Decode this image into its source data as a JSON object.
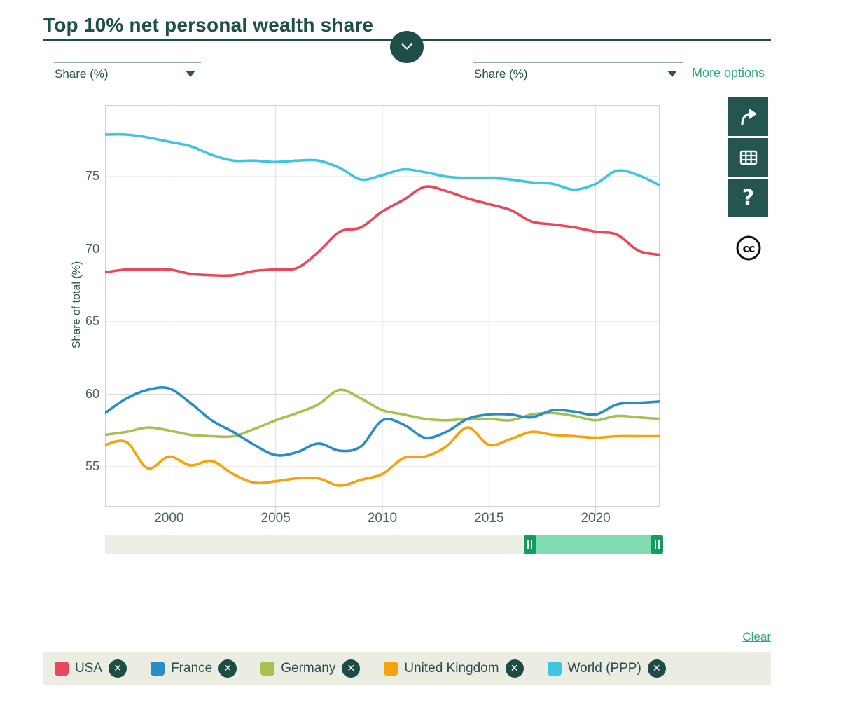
{
  "page": {
    "title": "Top 10% net personal wealth share"
  },
  "controls": {
    "left_select": {
      "value": "Share (%)"
    },
    "right_select": {
      "value": "Share (%)"
    },
    "more_options_label": "More options"
  },
  "toolbar": {
    "help_glyph": "?",
    "cc_glyph": "cc"
  },
  "chart_data": {
    "type": "line",
    "title": "Top 10% net personal wealth share",
    "xlabel": "",
    "ylabel": "Share of total (%)",
    "xlim": [
      1997,
      2023
    ],
    "ylim": [
      52.3,
      79.9
    ],
    "x_ticks": [
      2000,
      2005,
      2010,
      2015,
      2020
    ],
    "y_ticks": [
      55,
      60,
      65,
      70,
      75
    ],
    "grid": true,
    "legend_position": "bottom",
    "x": [
      1997,
      1998,
      1999,
      2000,
      2001,
      2002,
      2003,
      2004,
      2005,
      2006,
      2007,
      2008,
      2009,
      2010,
      2011,
      2012,
      2013,
      2014,
      2015,
      2016,
      2017,
      2018,
      2019,
      2020,
      2021,
      2022,
      2023
    ],
    "series": [
      {
        "name": "USA",
        "color": "#e8485b",
        "values": [
          68.4,
          68.6,
          68.6,
          68.6,
          68.3,
          68.2,
          68.2,
          68.5,
          68.6,
          68.7,
          69.8,
          71.2,
          71.5,
          72.6,
          73.4,
          74.3,
          74.0,
          73.5,
          73.1,
          72.7,
          71.9,
          71.7,
          71.5,
          71.2,
          71.0,
          69.9,
          69.6
        ]
      },
      {
        "name": "France",
        "color": "#2b8dc6",
        "values": [
          58.7,
          59.7,
          60.3,
          60.4,
          59.4,
          58.2,
          57.4,
          56.5,
          55.8,
          56.0,
          56.6,
          56.1,
          56.4,
          58.2,
          57.9,
          57.0,
          57.4,
          58.3,
          58.6,
          58.6,
          58.4,
          58.9,
          58.8,
          58.6,
          59.3,
          59.4,
          59.5
        ]
      },
      {
        "name": "Germany",
        "color": "#a6c14f",
        "values": [
          57.2,
          57.4,
          57.7,
          57.5,
          57.2,
          57.1,
          57.1,
          57.6,
          58.2,
          58.7,
          59.3,
          60.3,
          59.7,
          58.9,
          58.6,
          58.3,
          58.2,
          58.3,
          58.3,
          58.2,
          58.6,
          58.7,
          58.5,
          58.2,
          58.5,
          58.4,
          58.3
        ]
      },
      {
        "name": "United Kingdom",
        "color": "#f4a30c",
        "values": [
          56.5,
          56.7,
          54.9,
          55.7,
          55.1,
          55.4,
          54.5,
          53.9,
          54.0,
          54.2,
          54.2,
          53.7,
          54.1,
          54.5,
          55.6,
          55.7,
          56.4,
          57.7,
          56.5,
          56.9,
          57.4,
          57.2,
          57.1,
          57.0,
          57.1,
          57.1,
          57.1
        ]
      },
      {
        "name": "World (PPP)",
        "color": "#3fc5e0",
        "values": [
          77.9,
          77.9,
          77.7,
          77.4,
          77.1,
          76.5,
          76.1,
          76.1,
          76.0,
          76.1,
          76.1,
          75.6,
          74.8,
          75.1,
          75.5,
          75.3,
          75.0,
          74.9,
          74.9,
          74.8,
          74.6,
          74.5,
          74.1,
          74.5,
          75.4,
          75.1,
          74.4
        ]
      }
    ]
  },
  "slider": {
    "start_pct": 75,
    "end_pct": 100
  },
  "legend": {
    "clear_label": "Clear"
  },
  "colors": {
    "accent_dark": "#1e4f49",
    "link_green": "#36a47e",
    "grid": "#dcddd4",
    "plot_border": "#cfd3cc",
    "tick_text": "#4a6365",
    "slider_track": "#ecede3",
    "slider_range": "#80dcb2",
    "slider_handle": "#149c5c",
    "legend_bg": "#ebede3"
  }
}
